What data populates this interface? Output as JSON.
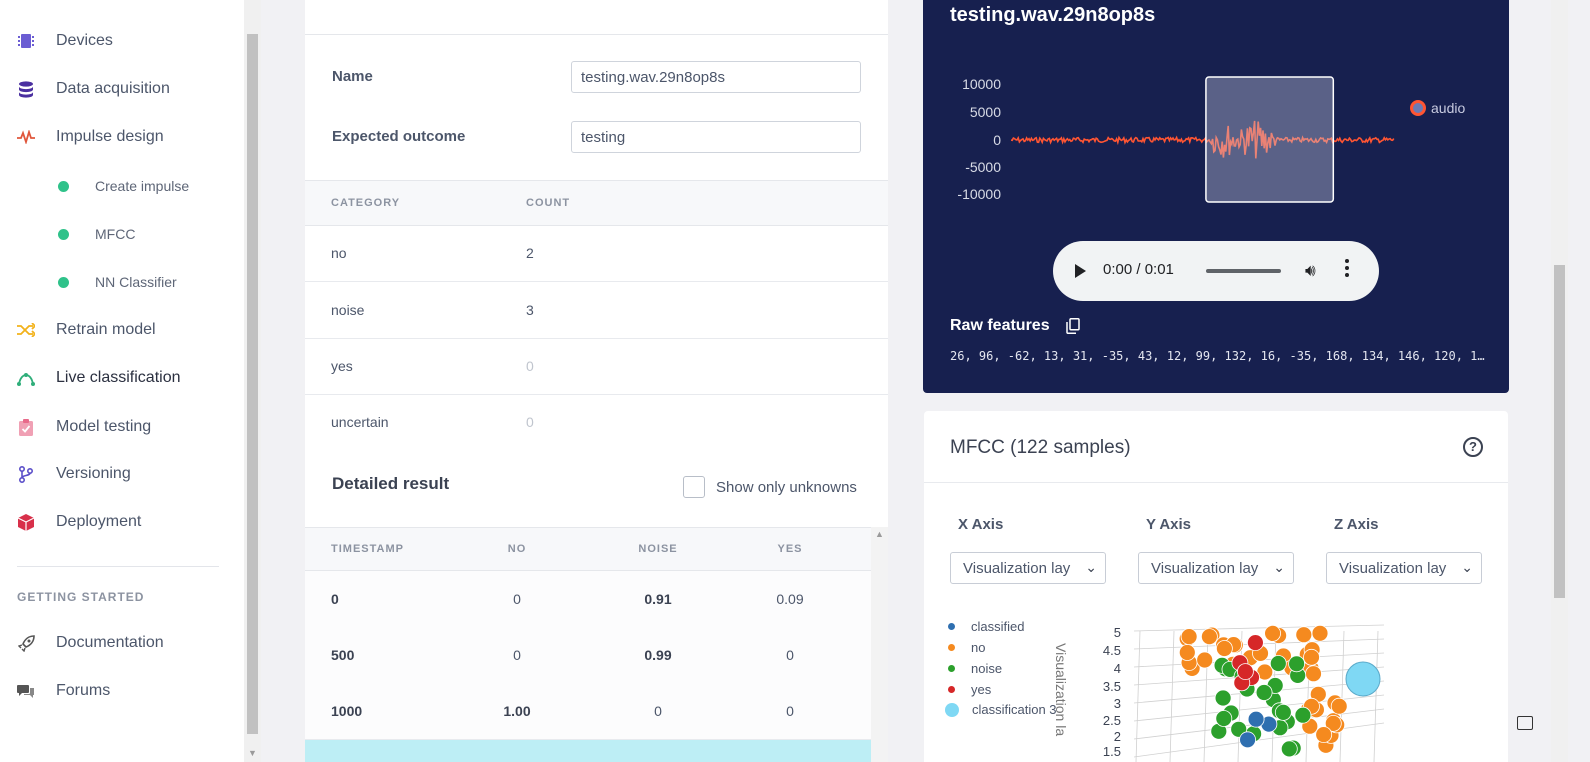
{
  "sidebar": {
    "items": [
      {
        "label": "Devices",
        "icon": "chip-icon",
        "color": "#6b5dd3"
      },
      {
        "label": "Data acquisition",
        "icon": "database-icon",
        "color": "#4a2fa0"
      },
      {
        "label": "Impulse design",
        "icon": "pulse-icon",
        "color": "#e0573c"
      },
      {
        "label": "Create impulse"
      },
      {
        "label": "MFCC"
      },
      {
        "label": "NN Classifier"
      },
      {
        "label": "Retrain model",
        "icon": "shuffle-icon",
        "color": "#f2b21b"
      },
      {
        "label": "Live classification",
        "icon": "curve-icon",
        "color": "#2fae7a"
      },
      {
        "label": "Model testing",
        "icon": "clipboard-check-icon",
        "color": "#e86a8a"
      },
      {
        "label": "Versioning",
        "icon": "branch-icon",
        "color": "#5b4fc9"
      },
      {
        "label": "Deployment",
        "icon": "box-icon",
        "color": "#d8304a"
      }
    ],
    "section": "GETTING STARTED",
    "bottom": [
      {
        "label": "Documentation",
        "icon": "rocket-icon"
      },
      {
        "label": "Forums",
        "icon": "chat-icon"
      }
    ]
  },
  "sample": {
    "name_label": "Name",
    "name_value": "testing.wav.29n8op8s",
    "outcome_label": "Expected outcome",
    "outcome_value": "testing"
  },
  "summary": {
    "headers": [
      "CATEGORY",
      "COUNT"
    ],
    "rows": [
      {
        "category": "no",
        "count": "2"
      },
      {
        "category": "noise",
        "count": "3"
      },
      {
        "category": "yes",
        "count": "0"
      },
      {
        "category": "uncertain",
        "count": "0"
      }
    ]
  },
  "detailed": {
    "title": "Detailed result",
    "toggle_label": "Show only unknowns",
    "headers": [
      "TIMESTAMP",
      "NO",
      "NOISE",
      "YES"
    ],
    "rows": [
      {
        "timestamp": "0",
        "no": "0",
        "noise": "0.91",
        "yes": "0.09"
      },
      {
        "timestamp": "500",
        "no": "0",
        "noise": "0.99",
        "yes": "0"
      },
      {
        "timestamp": "1000",
        "no": "1.00",
        "noise": "0",
        "yes": "0"
      }
    ]
  },
  "waveform": {
    "title": "testing.wav.29n8op8s",
    "yticks": [
      "10000",
      "5000",
      "0",
      "-5000",
      "-10000"
    ],
    "legend": "audio",
    "line_color": "#ff5533",
    "window_start_fraction": 0.505,
    "window_end_fraction": 0.835
  },
  "player": {
    "time": "0:00 / 0:01"
  },
  "raw": {
    "title": "Raw features",
    "values": "26, 96, -62, 13, 31, -35, 43, 12, 99, 132, 16, -35, 168, 134, 146, 120, 1…"
  },
  "mfcc": {
    "title": "MFCC (122 samples)",
    "axes": [
      {
        "label": "X Axis",
        "value": "Visualization lay"
      },
      {
        "label": "Y Axis",
        "value": "Visualization lay"
      },
      {
        "label": "Z Axis",
        "value": "Visualization lay"
      }
    ],
    "legend": [
      {
        "label": "classified",
        "color": "#2f6fb0"
      },
      {
        "label": "no",
        "color": "#f58a1f"
      },
      {
        "label": "noise",
        "color": "#2ca02c"
      },
      {
        "label": "yes",
        "color": "#d62728"
      },
      {
        "label": "classification 3",
        "color": "#7fd8f4"
      }
    ],
    "zticks": [
      "5",
      "4.5",
      "4",
      "3.5",
      "3",
      "2.5",
      "2",
      "1.5"
    ],
    "zlabel": "Visualization la"
  }
}
